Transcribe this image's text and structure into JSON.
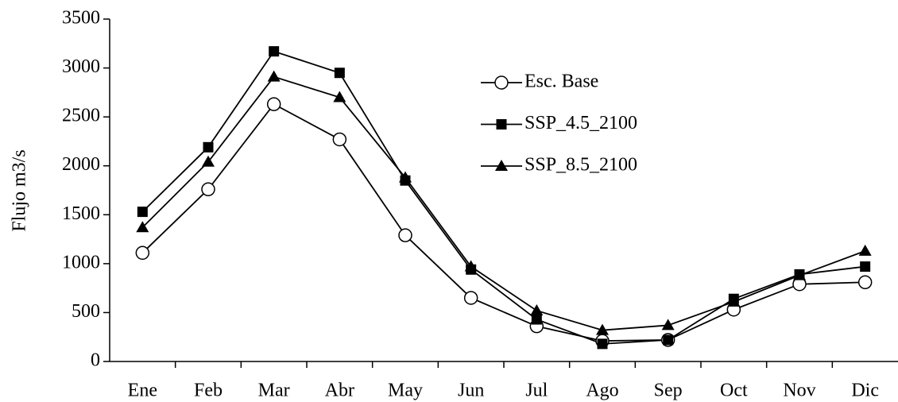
{
  "chart_data": {
    "type": "line",
    "y_label": "Flujo m3/s",
    "categories": [
      "Ene",
      "Feb",
      "Mar",
      "Abr",
      "May",
      "Jun",
      "Jul",
      "Ago",
      "Sep",
      "Oct",
      "Nov",
      "Dic"
    ],
    "series": [
      {
        "name": "Esc. Base",
        "color": "#000000",
        "marker": "circle",
        "values": [
          1110,
          1760,
          2630,
          2270,
          1290,
          650,
          360,
          210,
          220,
          530,
          790,
          810
        ]
      },
      {
        "name": "SSP_4.5_2100",
        "color": "#000000",
        "marker": "square",
        "values": [
          1530,
          2190,
          3170,
          2950,
          1850,
          940,
          430,
          180,
          220,
          640,
          890,
          970
        ]
      },
      {
        "name": "SSP_8.5_2100",
        "color": "#000000",
        "marker": "triangle",
        "values": [
          1370,
          2040,
          2910,
          2700,
          1880,
          970,
          520,
          320,
          370,
          610,
          880,
          1130
        ]
      }
    ],
    "ylim": [
      0,
      3500
    ],
    "yticks": [
      0,
      500,
      1000,
      1500,
      2000,
      2500,
      3000,
      3500
    ],
    "grid": false,
    "legend": "upper-right"
  }
}
